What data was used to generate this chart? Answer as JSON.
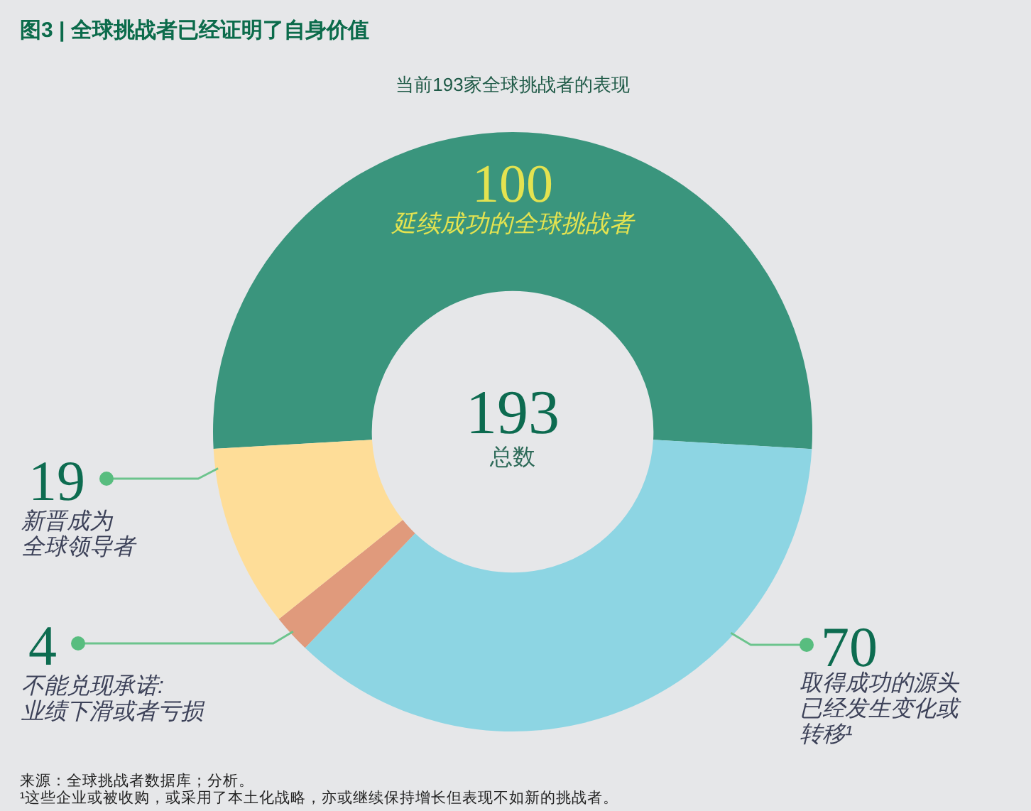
{
  "chart_data": {
    "type": "donut",
    "title": "图3 | 全球挑战者已经证明了自身价值",
    "subtitle": "当前193家全球挑战者的表现",
    "categories": [
      "延续成功的全球挑战者",
      "取得成功的源头已经发生变化或转移¹",
      "不能兑现承诺:业绩下滑或者亏损",
      "新晋成为全球领导者"
    ],
    "values": [
      100,
      70,
      4,
      19
    ],
    "colors": [
      "#3a957d",
      "#8dd5e3",
      "#e09a7c",
      "#fedd98"
    ],
    "data_labels": true,
    "annotations": [
      "193",
      "总数",
      "来源：全球挑战者数据库；分析。",
      "¹这些企业或被收购，或采用了本土化战略，亦或继续保持增长但表现不如新的挑战者。"
    ]
  }
}
